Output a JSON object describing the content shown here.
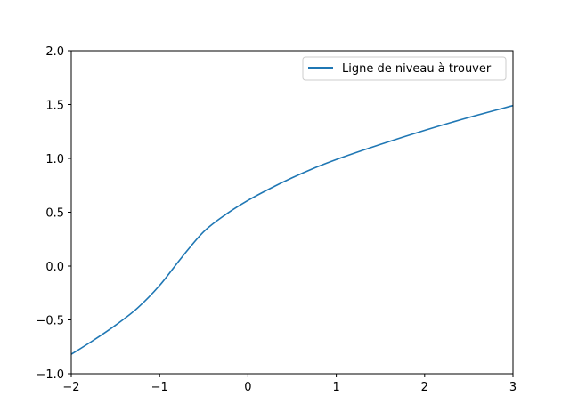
{
  "chart_data": {
    "type": "line",
    "title": "",
    "xlabel": "",
    "ylabel": "",
    "xlim": [
      -2,
      3
    ],
    "ylim": [
      -1.0,
      2.0
    ],
    "x_ticks": [
      -2,
      -1,
      0,
      1,
      2,
      3
    ],
    "x_tick_labels": [
      "−2",
      "−1",
      "0",
      "1",
      "2",
      "3"
    ],
    "y_ticks": [
      -1.0,
      -0.5,
      0.0,
      0.5,
      1.0,
      1.5,
      2.0
    ],
    "y_tick_labels": [
      "−1.0",
      "−0.5",
      "0.0",
      "0.5",
      "1.0",
      "1.5",
      "2.0"
    ],
    "grid": false,
    "legend_position": "top-right",
    "series": [
      {
        "name": "Ligne de niveau à trouver",
        "color": "#1f77b4",
        "x": [
          -2.0,
          -1.75,
          -1.5,
          -1.25,
          -1.0,
          -0.75,
          -0.5,
          -0.25,
          0.0,
          0.25,
          0.5,
          0.75,
          1.0,
          1.5,
          2.0,
          2.5,
          3.0
        ],
        "y": [
          -0.82,
          -0.69,
          -0.55,
          -0.39,
          -0.18,
          0.08,
          0.32,
          0.48,
          0.61,
          0.72,
          0.82,
          0.91,
          0.99,
          1.13,
          1.26,
          1.38,
          1.49
        ]
      }
    ]
  }
}
